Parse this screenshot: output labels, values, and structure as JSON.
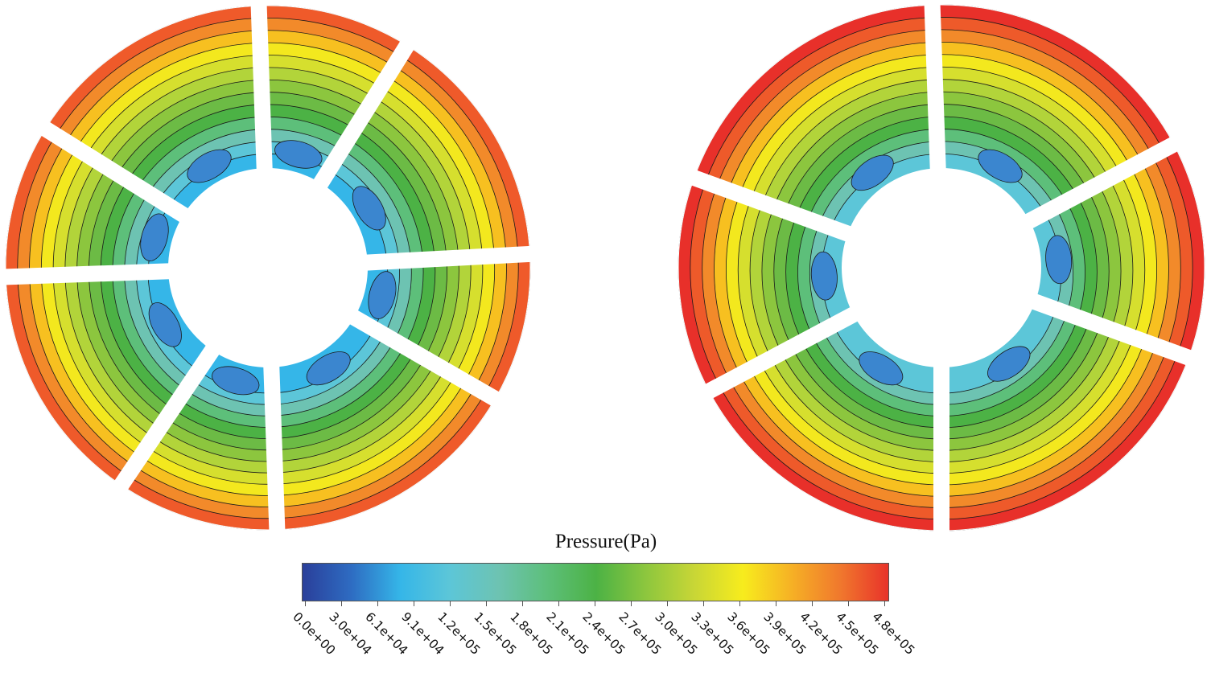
{
  "legend": {
    "title": "Pressure(Pa)",
    "ticks": [
      "0.0e+00",
      "3.0e+04",
      "6.1e+04",
      "9.1e+04",
      "1.2e+05",
      "1.5e+05",
      "1.8e+05",
      "2.1e+05",
      "2.4e+05",
      "2.7e+05",
      "3.0e+05",
      "3.3e+05",
      "3.6e+05",
      "3.9e+05",
      "4.2e+05",
      "4.5e+05",
      "4.8e+05"
    ],
    "colormap": [
      "#2a3f9a",
      "#2e6cc2",
      "#35b6e8",
      "#5cc6d8",
      "#6dc3b2",
      "#5dbf7a",
      "#4cb245",
      "#8cc63e",
      "#c8d636",
      "#f7ec1d",
      "#f6b025",
      "#f0772d",
      "#e8302a"
    ]
  },
  "panels": [
    {
      "name": "left-disk",
      "outer_color": "#ea4b2b",
      "ring_colors": [
        "#ef5a2a",
        "#f28a2a",
        "#f7c020",
        "#f3e81e",
        "#d6df2e",
        "#b2d43a",
        "#8cc63e",
        "#6cbb45",
        "#4cb245",
        "#5dbf7a",
        "#6dc3b2",
        "#5cc6d8",
        "#35b6e8"
      ],
      "slot_angles_deg": [
        92,
        58,
        3,
        -30,
        -88,
        -124,
        -178,
        148
      ],
      "low_color": "#3b86cf"
    },
    {
      "name": "right-disk",
      "outer_color": "#e8302a",
      "ring_colors": [
        "#e8302a",
        "#ee5a2a",
        "#f28a2a",
        "#f7c020",
        "#f3e81e",
        "#d6df2e",
        "#b2d43a",
        "#8cc63e",
        "#6cbb45",
        "#4cb245",
        "#5dbf7a",
        "#6dc3b2",
        "#5cc6d8"
      ],
      "slot_angles_deg": [
        92,
        28,
        -20,
        -90,
        -152,
        160
      ],
      "low_color": "#3b86cf"
    }
  ]
}
